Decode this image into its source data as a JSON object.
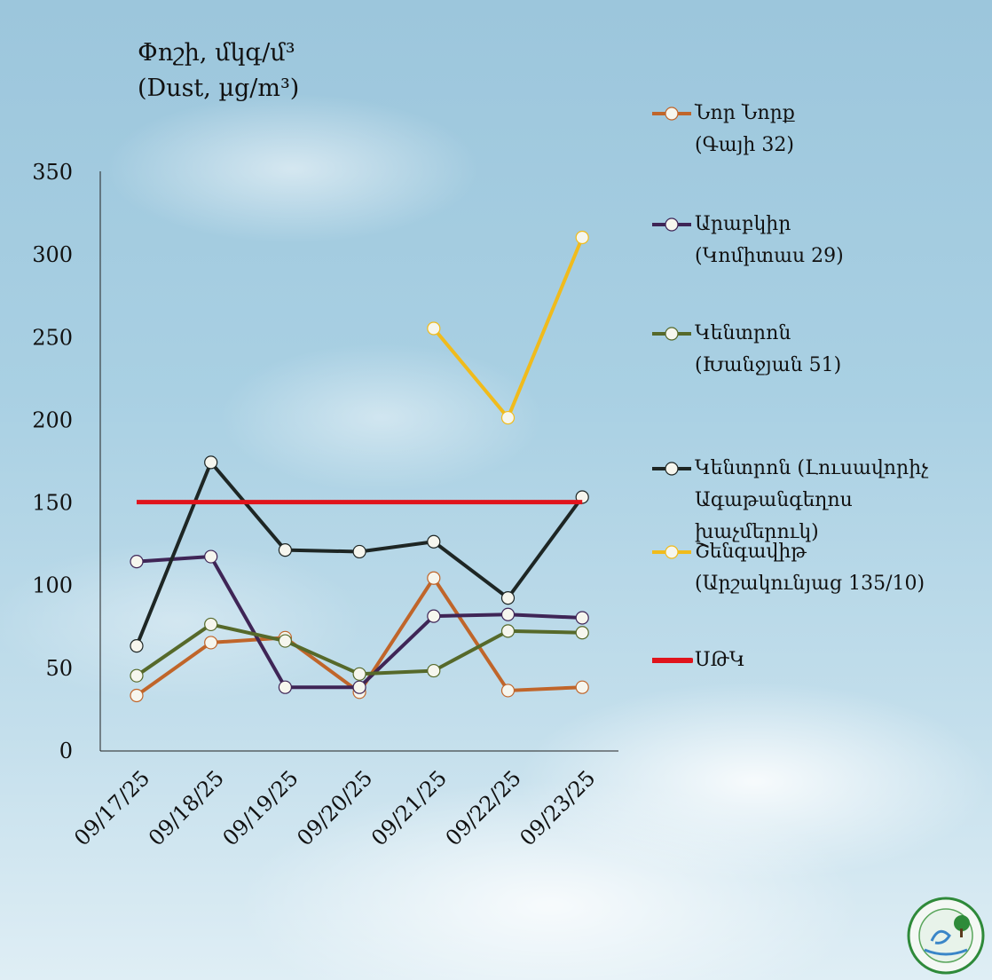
{
  "chart_data": {
    "type": "line",
    "title": "Փոշի, մկգ/մ³",
    "subtitle": "(Dust, µg/m³)",
    "xlabel": "",
    "ylabel": "",
    "categories": [
      "09/17/25",
      "09/18/25",
      "09/19/25",
      "09/20/25",
      "09/21/25",
      "09/22/25",
      "09/23/25"
    ],
    "ylim": [
      0,
      350
    ],
    "yticks": [
      0,
      50,
      100,
      150,
      200,
      250,
      300,
      350
    ],
    "grid": false,
    "legend_placement": "right",
    "series": [
      {
        "name": "Նոր Նորք",
        "name_line2": "(Գայի 32)",
        "color": "#c0652a",
        "values": [
          33,
          65,
          68,
          35,
          104,
          36,
          38
        ]
      },
      {
        "name": "Արաբկիր",
        "name_line2": "(Կոմիտաս 29)",
        "color": "#3f2556",
        "values": [
          114,
          117,
          38,
          38,
          81,
          82,
          80
        ]
      },
      {
        "name": "Կենտրոն",
        "name_line2": "(Խանջյան 51)",
        "color": "#56692a",
        "values": [
          45,
          76,
          66,
          46,
          48,
          72,
          71
        ]
      },
      {
        "name": "Կենտրոն (Լուսավորիչ",
        "name_line2": "Ագաթանգեղոս",
        "name_line3": "խաչմերուկ)",
        "color": "#1e2624",
        "values": [
          63,
          174,
          121,
          120,
          126,
          92,
          153
        ]
      },
      {
        "name": "Շենգավիթ",
        "name_line2": "(Արշակունյաց 135/10)",
        "color": "#f0bb1c",
        "values": [
          null,
          null,
          null,
          null,
          255,
          201,
          310
        ]
      },
      {
        "name": "ՍԹԿ",
        "color": "#e0141c",
        "values": [
          150,
          150,
          150,
          150,
          150,
          150,
          150
        ],
        "markers": false
      }
    ]
  }
}
